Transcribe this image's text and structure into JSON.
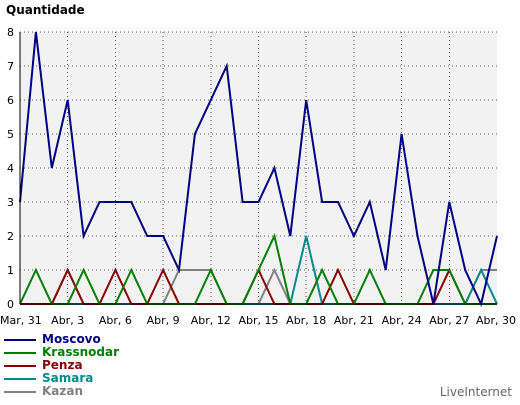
{
  "page": {
    "title": "Quantidade",
    "brand": "LiveInternet"
  },
  "chart_data": {
    "type": "line",
    "ylabel": "Quantidade",
    "ylim": [
      0,
      8
    ],
    "yticks": [
      "0",
      "1",
      "2",
      "3",
      "4",
      "5",
      "6",
      "7",
      "8"
    ],
    "x_start": "Mar, 31",
    "x_ticks": [
      {
        "i": 0,
        "label": "Mar, 31"
      },
      {
        "i": 3,
        "label": "Abr, 3"
      },
      {
        "i": 6,
        "label": "Abr, 6"
      },
      {
        "i": 9,
        "label": "Abr, 9"
      },
      {
        "i": 12,
        "label": "Abr, 12"
      },
      {
        "i": 15,
        "label": "Abr, 15"
      },
      {
        "i": 18,
        "label": "Abr, 18"
      },
      {
        "i": 21,
        "label": "Abr, 21"
      },
      {
        "i": 24,
        "label": "Abr, 24"
      },
      {
        "i": 27,
        "label": "Abr, 27"
      },
      {
        "i": 30,
        "label": "Abr, 30"
      }
    ],
    "grid": true,
    "legend": "bottom-left",
    "series": [
      {
        "name": "Moscovo",
        "color": "#000080",
        "values": [
          3,
          8,
          4,
          6,
          2,
          3,
          3,
          3,
          2,
          2,
          1,
          5,
          6,
          7,
          3,
          3,
          4,
          2,
          6,
          3,
          3,
          2,
          3,
          1,
          5,
          2,
          0,
          3,
          1,
          0,
          2
        ]
      },
      {
        "name": "Krassnodar",
        "color": "#008000",
        "values": [
          0,
          1,
          0,
          0,
          1,
          0,
          0,
          1,
          0,
          0,
          0,
          0,
          1,
          0,
          0,
          1,
          2,
          0,
          0,
          1,
          0,
          0,
          1,
          0,
          0,
          0,
          1,
          1,
          0,
          0,
          0
        ]
      },
      {
        "name": "Penza",
        "color": "#8b0000",
        "values": [
          0,
          0,
          0,
          1,
          0,
          0,
          1,
          0,
          0,
          1,
          0,
          0,
          0,
          0,
          0,
          1,
          0,
          0,
          0,
          0,
          1,
          0,
          0,
          0,
          0,
          0,
          0,
          1,
          0,
          0,
          0
        ]
      },
      {
        "name": "Samara",
        "color": "#008b8b",
        "values": [
          0,
          0,
          0,
          0,
          0,
          0,
          0,
          0,
          0,
          0,
          0,
          0,
          0,
          0,
          0,
          0,
          0,
          0,
          2,
          0,
          0,
          0,
          0,
          0,
          0,
          0,
          0,
          0,
          0,
          1,
          0
        ]
      },
      {
        "name": "Kazan",
        "color": "#808080",
        "values": [
          0,
          0,
          0,
          1,
          0,
          0,
          0,
          0,
          0,
          0,
          1,
          1,
          1,
          0,
          0,
          0,
          1,
          0,
          0,
          0,
          0,
          0,
          0,
          0,
          0,
          0,
          0,
          0,
          0,
          1,
          1
        ]
      }
    ]
  }
}
